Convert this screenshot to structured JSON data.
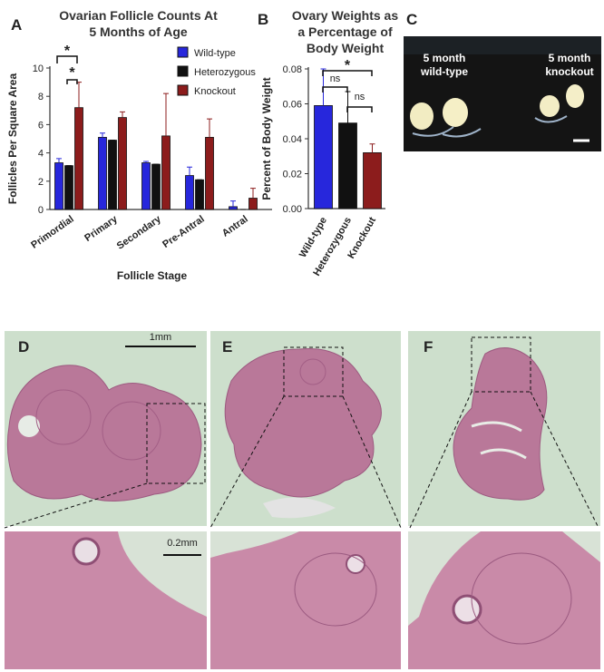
{
  "panels": [
    "A",
    "B",
    "C",
    "D",
    "E",
    "F"
  ],
  "photo_labels": [
    "5 month wild-type",
    "5 month knockout"
  ],
  "scale_bars": [
    "1mm",
    "0.2mm"
  ],
  "chart_data": [
    {
      "type": "bar",
      "title": "Ovarian Follicle Counts At 5 Months of Age",
      "x_label": "Follicle Stage",
      "y_label": "Follicles Per Square Area",
      "categories": [
        "Primordial",
        "Primary",
        "Secondary",
        "Pre-Antral",
        "Antral"
      ],
      "series": [
        {
          "name": "Wild-type",
          "color": "#2727dc",
          "values": [
            3.3,
            5.1,
            3.3,
            2.4,
            0.2
          ],
          "errors": [
            0.3,
            0.3,
            0.1,
            0.6,
            0.4
          ]
        },
        {
          "name": "Heterozygous",
          "color": "#111111",
          "values": [
            3.1,
            4.9,
            3.2,
            2.1,
            0
          ],
          "errors": [
            0,
            0,
            0,
            0,
            0
          ]
        },
        {
          "name": "Knockout",
          "color": "#8c1c1c",
          "values": [
            7.2,
            6.5,
            5.2,
            5.1,
            0.8
          ],
          "errors": [
            1.8,
            0.4,
            3.0,
            1.3,
            0.7
          ]
        }
      ],
      "ylim": [
        0,
        10
      ],
      "yticks": [
        0,
        2,
        4,
        6,
        8,
        10
      ],
      "annotations": [
        "*",
        "*"
      ]
    },
    {
      "type": "bar",
      "title": "Ovary Weights as a Percentage of Body Weight",
      "y_label": "Percent of  Body  Weight",
      "categories": [
        "Wild-type",
        "Heterozygous",
        "Knockout"
      ],
      "colors": [
        "#2727dc",
        "#111111",
        "#8c1c1c"
      ],
      "values": [
        0.059,
        0.049,
        0.032
      ],
      "errors": [
        0.021,
        0.018,
        0.005
      ],
      "ylim": [
        0,
        0.08
      ],
      "yticks": [
        {
          "value": 0,
          "label": "0.00"
        },
        {
          "value": 0.02,
          "label": "0.02"
        },
        {
          "value": 0.04,
          "label": "0.04"
        },
        {
          "value": 0.06,
          "label": "0.06"
        },
        {
          "value": 0.08,
          "label": "0.08"
        }
      ],
      "annotations": [
        "*",
        "ns",
        "ns"
      ]
    }
  ]
}
